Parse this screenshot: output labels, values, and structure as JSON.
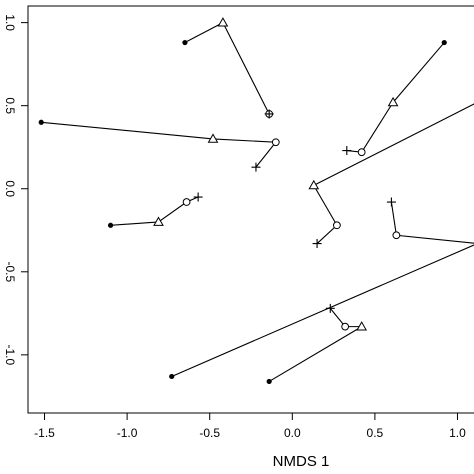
{
  "chart_data": {
    "type": "scatter",
    "title": "",
    "xlabel": "NMDS 1",
    "ylabel": "",
    "xlim": [
      -1.6,
      1.1
    ],
    "ylim": [
      -1.35,
      1.1
    ],
    "x_ticks": [
      -1.5,
      -1.0,
      -0.5,
      0.0,
      0.5,
      1.0
    ],
    "x_tick_labels": [
      "-1.5",
      "-1.0",
      "-0.5",
      "0.0",
      "0.5",
      "1.0"
    ],
    "y_ticks": [
      1.0,
      0.5,
      0.0,
      -0.5,
      -1.0
    ],
    "y_tick_labels": [
      "1.0",
      "0.5",
      "0.0",
      "-0.5",
      "-1.0"
    ],
    "grid": false,
    "legend": "none",
    "trajectories": [
      {
        "points": [
          {
            "x": -0.65,
            "y": 0.88,
            "marker": "dot"
          },
          {
            "x": -0.42,
            "y": 1.0,
            "marker": "triangle"
          },
          {
            "x": -0.14,
            "y": 0.45,
            "marker": "circle"
          },
          {
            "x": -0.14,
            "y": 0.45,
            "marker": "plus"
          }
        ]
      },
      {
        "points": [
          {
            "x": -1.52,
            "y": 0.4,
            "marker": "dot"
          },
          {
            "x": -0.48,
            "y": 0.3,
            "marker": "triangle"
          },
          {
            "x": -0.1,
            "y": 0.28,
            "marker": "circle"
          },
          {
            "x": -0.22,
            "y": 0.13,
            "marker": "plus"
          }
        ]
      },
      {
        "points": [
          {
            "x": 0.92,
            "y": 0.88,
            "marker": "dot"
          },
          {
            "x": 0.61,
            "y": 0.52,
            "marker": "triangle"
          },
          {
            "x": 0.42,
            "y": 0.22,
            "marker": "circle"
          },
          {
            "x": 0.33,
            "y": 0.23,
            "marker": "plus"
          }
        ]
      },
      {
        "points": [
          {
            "x": -1.1,
            "y": -0.22,
            "marker": "dot"
          },
          {
            "x": -0.81,
            "y": -0.2,
            "marker": "triangle"
          },
          {
            "x": -0.64,
            "y": -0.08,
            "marker": "circle"
          },
          {
            "x": -0.57,
            "y": -0.05,
            "marker": "plus"
          }
        ]
      },
      {
        "points": [
          {
            "x": 1.12,
            "y": 0.52,
            "marker": "dot"
          },
          {
            "x": 0.13,
            "y": 0.02,
            "marker": "triangle"
          },
          {
            "x": 0.27,
            "y": -0.22,
            "marker": "circle"
          },
          {
            "x": 0.15,
            "y": -0.33,
            "marker": "plus"
          }
        ]
      },
      {
        "points": [
          {
            "x": 1.12,
            "y": -0.33,
            "marker": "dot"
          },
          {
            "x": 0.63,
            "y": -0.28,
            "marker": "circle"
          },
          {
            "x": 0.6,
            "y": -0.08,
            "marker": "plus"
          }
        ]
      },
      {
        "points": [
          {
            "x": -0.73,
            "y": -1.13,
            "marker": "dot"
          },
          {
            "x": 1.12,
            "y": -0.33,
            "marker": "dot"
          }
        ]
      },
      {
        "points": [
          {
            "x": -0.14,
            "y": -1.16,
            "marker": "dot"
          },
          {
            "x": 0.42,
            "y": -0.83,
            "marker": "triangle"
          },
          {
            "x": 0.32,
            "y": -0.83,
            "marker": "circle"
          },
          {
            "x": 0.23,
            "y": -0.72,
            "marker": "plus"
          }
        ]
      }
    ]
  }
}
